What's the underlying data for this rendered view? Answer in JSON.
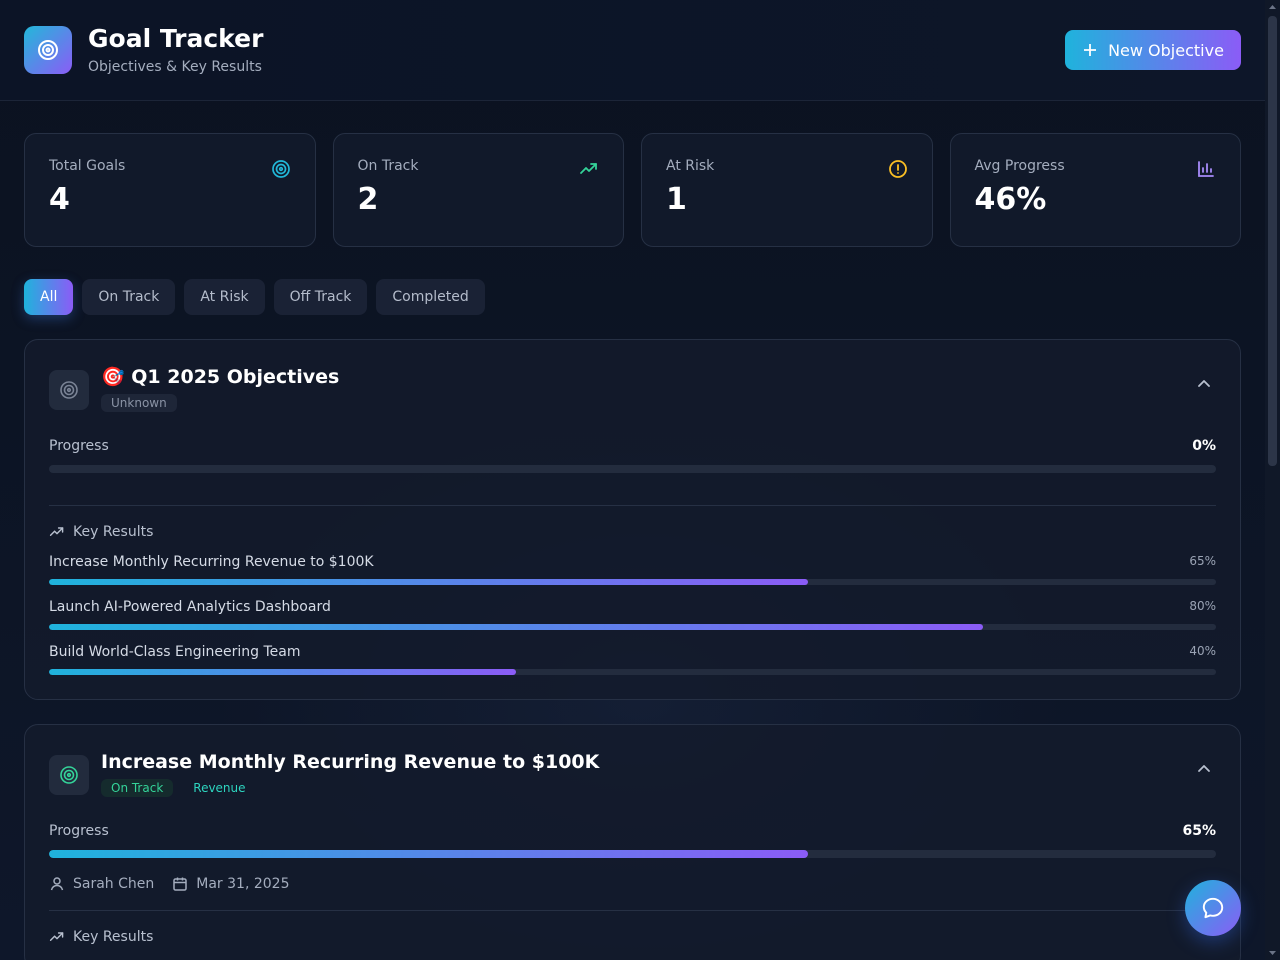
{
  "header": {
    "title": "Goal Tracker",
    "subtitle": "Objectives & Key Results",
    "new_button": "New Objective"
  },
  "stats": [
    {
      "label": "Total Goals",
      "value": "4",
      "icon": "target-icon",
      "color": "#22b8d9"
    },
    {
      "label": "On Track",
      "value": "2",
      "icon": "trending-up-icon",
      "color": "#34d399"
    },
    {
      "label": "At Risk",
      "value": "1",
      "icon": "alert-circle-icon",
      "color": "#fbbf24"
    },
    {
      "label": "Avg Progress",
      "value": "46%",
      "icon": "bar-chart-icon",
      "color": "#a78bfa"
    }
  ],
  "filters": [
    {
      "label": "All",
      "active": true
    },
    {
      "label": "On Track"
    },
    {
      "label": "At Risk"
    },
    {
      "label": "Off Track"
    },
    {
      "label": "Completed"
    }
  ],
  "goals": [
    {
      "title": "🎯 Q1 2025 Objectives",
      "status": "Unknown",
      "progress_label": "Progress",
      "progress": 0,
      "progress_text": "0%",
      "key_results_label": "Key Results",
      "key_results": [
        {
          "name": "Increase Monthly Recurring Revenue to $100K",
          "progress": 65,
          "text": "65%"
        },
        {
          "name": "Launch AI-Powered Analytics Dashboard",
          "progress": 80,
          "text": "80%"
        },
        {
          "name": "Build World-Class Engineering Team",
          "progress": 40,
          "text": "40%"
        }
      ]
    },
    {
      "title": "Increase Monthly Recurring Revenue to $100K",
      "status": "On Track",
      "category": "Revenue",
      "progress_label": "Progress",
      "progress": 65,
      "progress_text": "65%",
      "owner": "Sarah Chen",
      "due": "Mar 31, 2025",
      "key_results_label": "Key Results"
    }
  ],
  "colors": {
    "accent_start": "#1fb3dc",
    "accent_end": "#8b5cf6",
    "background": "#0b1222"
  }
}
